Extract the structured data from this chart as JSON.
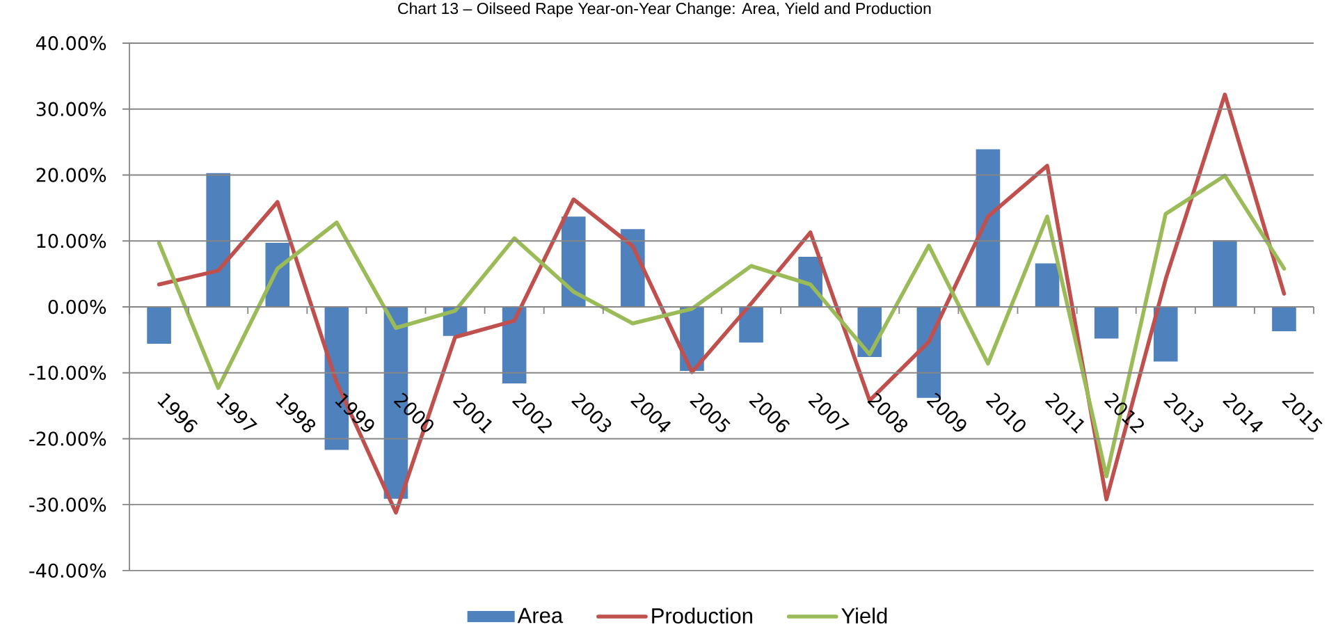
{
  "chart_data": {
    "type": "bar",
    "title": "Chart 13 – Oilseed Rape Year-on-Year Change: Area, Yield and Production",
    "categories": [
      "1996",
      "1997",
      "1998",
      "1999",
      "2000",
      "2001",
      "2002",
      "2003",
      "2004",
      "2005",
      "2006",
      "2007",
      "2008",
      "2009",
      "2010",
      "2011",
      "2012",
      "2013",
      "2014",
      "2015"
    ],
    "series": [
      {
        "name": "Area",
        "color": "#4f81bd",
        "values": [
          -5.6,
          20.3,
          9.7,
          -21.7,
          -29.1,
          -4.4,
          -11.6,
          13.7,
          11.8,
          -9.7,
          -5.4,
          7.6,
          -7.6,
          -13.8,
          23.9,
          6.6,
          -4.8,
          -8.3,
          10.1,
          -3.7
        ]
      },
      {
        "name": "Production",
        "type": "line",
        "color": "#c0504d",
        "values": [
          3.4,
          5.5,
          15.9,
          -11.5,
          -31.2,
          -4.6,
          -2.1,
          16.3,
          9.2,
          -9.9,
          0.5,
          11.3,
          -14.2,
          -5.3,
          13.7,
          21.4,
          -29.2,
          4.2,
          32.2,
          2.0
        ]
      },
      {
        "name": "Yield",
        "type": "line",
        "color": "#9bbb59",
        "values": [
          9.7,
          -12.3,
          5.8,
          12.8,
          -3.2,
          -0.6,
          10.4,
          2.3,
          -2.5,
          -0.3,
          6.2,
          3.4,
          -7.2,
          9.3,
          -8.6,
          13.7,
          -25.7,
          14.1,
          19.9,
          5.8
        ]
      }
    ],
    "ylim": [
      -40,
      40
    ],
    "yticks": [
      {
        "value": -40,
        "label": "-40.00%"
      },
      {
        "value": -30,
        "label": "-30.00%"
      },
      {
        "value": -20,
        "label": "-20.00%"
      },
      {
        "value": -10,
        "label": "-10.00%"
      },
      {
        "value": 0,
        "label": "0.00%"
      },
      {
        "value": 10,
        "label": "10.00%"
      },
      {
        "value": 20,
        "label": "20.00%"
      },
      {
        "value": 30,
        "label": "30.00%"
      },
      {
        "value": 40,
        "label": "40.00%"
      }
    ],
    "grid": "y",
    "legend": "bottom"
  }
}
